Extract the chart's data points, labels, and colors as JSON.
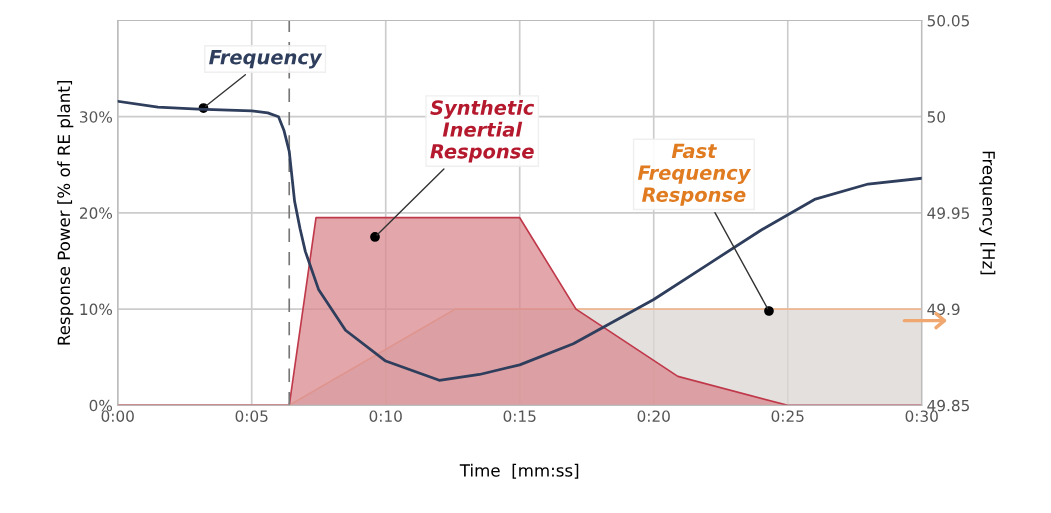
{
  "chart_data": {
    "type": "area",
    "xlabel": "Time  [mm:ss]",
    "ylabel": "Response Power [% of RE plant]",
    "y2label": "Frequency [Hz]",
    "xlim": [
      0,
      30
    ],
    "xticks": [
      {
        "value": 0,
        "label": "0:00"
      },
      {
        "value": 5,
        "label": "0:05"
      },
      {
        "value": 10,
        "label": "0:10"
      },
      {
        "value": 15,
        "label": "0:15"
      },
      {
        "value": 20,
        "label": "0:20"
      },
      {
        "value": 25,
        "label": "0:25"
      },
      {
        "value": 30,
        "label": "0:30"
      }
    ],
    "ylim": [
      0,
      40
    ],
    "yticks": [
      {
        "value": 0,
        "label": "0%"
      },
      {
        "value": 10,
        "label": "10%"
      },
      {
        "value": 20,
        "label": "20%"
      },
      {
        "value": 30,
        "label": "30%"
      }
    ],
    "y2lim": [
      49.85,
      50.05
    ],
    "y2ticks": [
      49.85,
      49.9,
      49.95,
      50,
      50.05
    ],
    "grid": true,
    "series": [
      {
        "color": "#d9d5d2",
        "x": [
          0,
          6.4,
          12.6,
          30
        ],
        "values": [
          0,
          0,
          10,
          10
        ]
      },
      {
        "color": "#d9898f",
        "x": [
          0,
          6.4,
          7.4,
          15,
          17.1,
          20.9,
          25,
          30
        ],
        "values": [
          0,
          0,
          19.5,
          19.5,
          10,
          3,
          0,
          0
        ]
      },
      {
        "type": "line",
        "axis": "y2",
        "color": "#2e3e5c",
        "x": [
          0,
          1.5,
          3,
          5,
          5.6,
          6,
          6.2,
          6.4,
          6.6,
          6.8,
          7,
          7.5,
          8.5,
          10,
          12,
          13.5,
          15,
          17,
          20,
          22,
          24,
          26,
          28,
          30
        ],
        "values": [
          50.008,
          50.005,
          50.004,
          50.003,
          50.002,
          50.0,
          49.993,
          49.982,
          49.956,
          49.942,
          49.93,
          49.91,
          49.889,
          49.873,
          49.863,
          49.866,
          49.871,
          49.882,
          49.905,
          49.923,
          49.941,
          49.957,
          49.965,
          49.968
        ]
      }
    ],
    "ref_lines": [
      {
        "axis": "x",
        "value": 6.4,
        "line_style": "dashed",
        "color": "#777777"
      }
    ],
    "annotations": [
      {
        "text": "Frequency",
        "x": 3.2,
        "y": 30.9
      },
      {
        "text": "Synthetic\nInertial\nResponse",
        "x": 9.6,
        "y": 17.5
      },
      {
        "text": "Fast\nFrequency\nResponse",
        "x": 24.3,
        "y": 9.8
      }
    ]
  }
}
